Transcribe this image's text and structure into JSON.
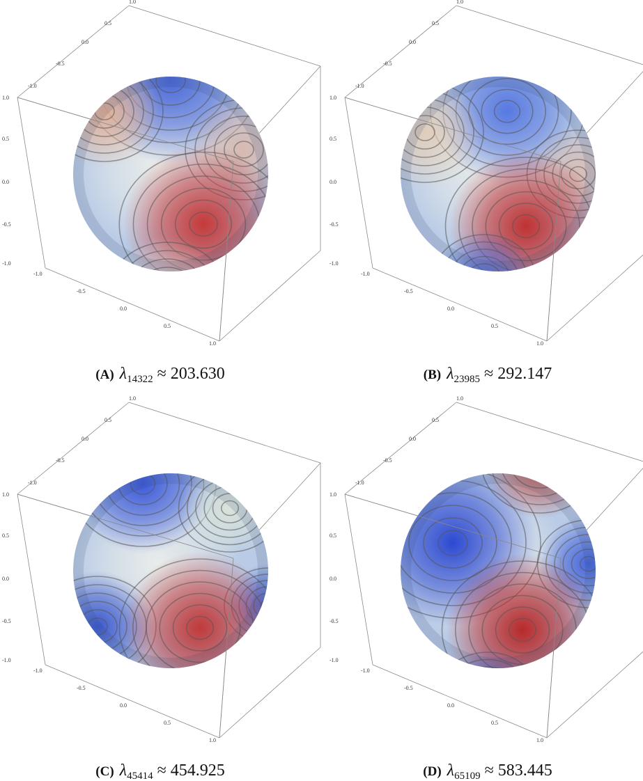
{
  "figure": {
    "axis_ticks": {
      "top": [
        "1.0",
        "0.5",
        "0.0",
        "-0.5",
        "-1.0"
      ],
      "left": [
        "1.0",
        "0.5",
        "0.0",
        "-0.5",
        "-1.0"
      ],
      "bottom": [
        "-1.0",
        "-0.5",
        "0.0",
        "0.5",
        "1.0"
      ]
    },
    "panels": [
      {
        "tag": "(A)",
        "symbol": "λ",
        "index": "14322",
        "relation": "≈ 203.630"
      },
      {
        "tag": "(B)",
        "symbol": "λ",
        "index": "23985",
        "relation": "≈ 292.147"
      },
      {
        "tag": "(C)",
        "symbol": "λ",
        "index": "45414",
        "relation": "≈ 454.925"
      },
      {
        "tag": "(D)",
        "symbol": "λ",
        "index": "65109",
        "relation": "≈ 583.445"
      }
    ]
  }
}
